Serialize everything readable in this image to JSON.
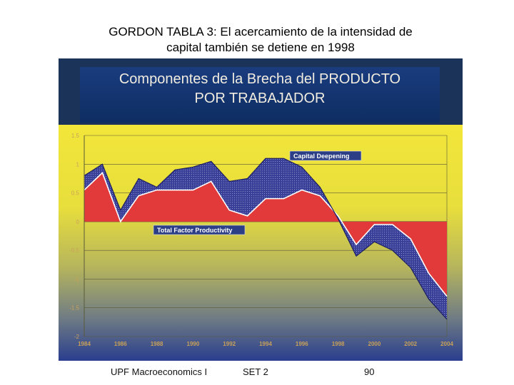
{
  "slide": {
    "title_line1": "GORDON TABLA 3: El acercamiento de la intensidad de",
    "title_line2": "capital también se detiene en 1998"
  },
  "panel": {
    "title_line1": "Componentes de la Brecha del PRODUCTO",
    "title_line2": "POR TRABAJADOR"
  },
  "footer": {
    "course": "UPF Macroeconomics I",
    "set": "SET 2",
    "page": "90"
  },
  "colors": {
    "panel_background": "#1b3358",
    "plot_top": "#f2e63a",
    "plot_bottom": "#2a3e8e",
    "total_factor_productivity_fill": "#e23a3a",
    "capital_deepening_fill": "#3a3f98",
    "tick_label": "#c8a15a"
  },
  "chart_data": {
    "type": "area",
    "title": "",
    "xlabel": "",
    "ylabel": "",
    "xlim": [
      1984,
      2004
    ],
    "ylim": [
      -2,
      1.5
    ],
    "grid": true,
    "x_tick_labels": [
      "1984",
      "1986",
      "1988",
      "1990",
      "1992",
      "1994",
      "1996",
      "1998",
      "2000",
      "2002",
      "2004"
    ],
    "y_tick_labels": [
      "1.5",
      "1",
      "0.5",
      "0",
      "-0.5",
      "-1",
      "-1.5",
      "-2"
    ],
    "y_ticks": [
      1.5,
      1,
      0.5,
      0,
      -0.5,
      -1,
      -1.5,
      -2
    ],
    "x": [
      1984,
      1985,
      1986,
      1987,
      1988,
      1989,
      1990,
      1991,
      1992,
      1993,
      1994,
      1995,
      1996,
      1997,
      1998,
      1999,
      2000,
      2001,
      2002,
      2003,
      2004
    ],
    "series": [
      {
        "name": "Total Factor Productivity",
        "values": [
          0.55,
          0.85,
          0.0,
          0.45,
          0.55,
          0.55,
          0.55,
          0.7,
          0.2,
          0.1,
          0.4,
          0.4,
          0.55,
          0.45,
          0.1,
          -0.4,
          -0.05,
          -0.05,
          -0.3,
          -0.9,
          -1.3
        ]
      },
      {
        "name": "Capital Deepening",
        "values": [
          0.25,
          0.15,
          0.2,
          0.3,
          0.05,
          0.35,
          0.4,
          0.35,
          0.5,
          0.65,
          0.7,
          0.7,
          0.4,
          0.15,
          -0.05,
          -0.2,
          -0.3,
          -0.45,
          -0.5,
          -0.45,
          -0.4
        ]
      }
    ],
    "annotations": [
      "Capital Deepening",
      "Total Factor Productivity"
    ]
  }
}
